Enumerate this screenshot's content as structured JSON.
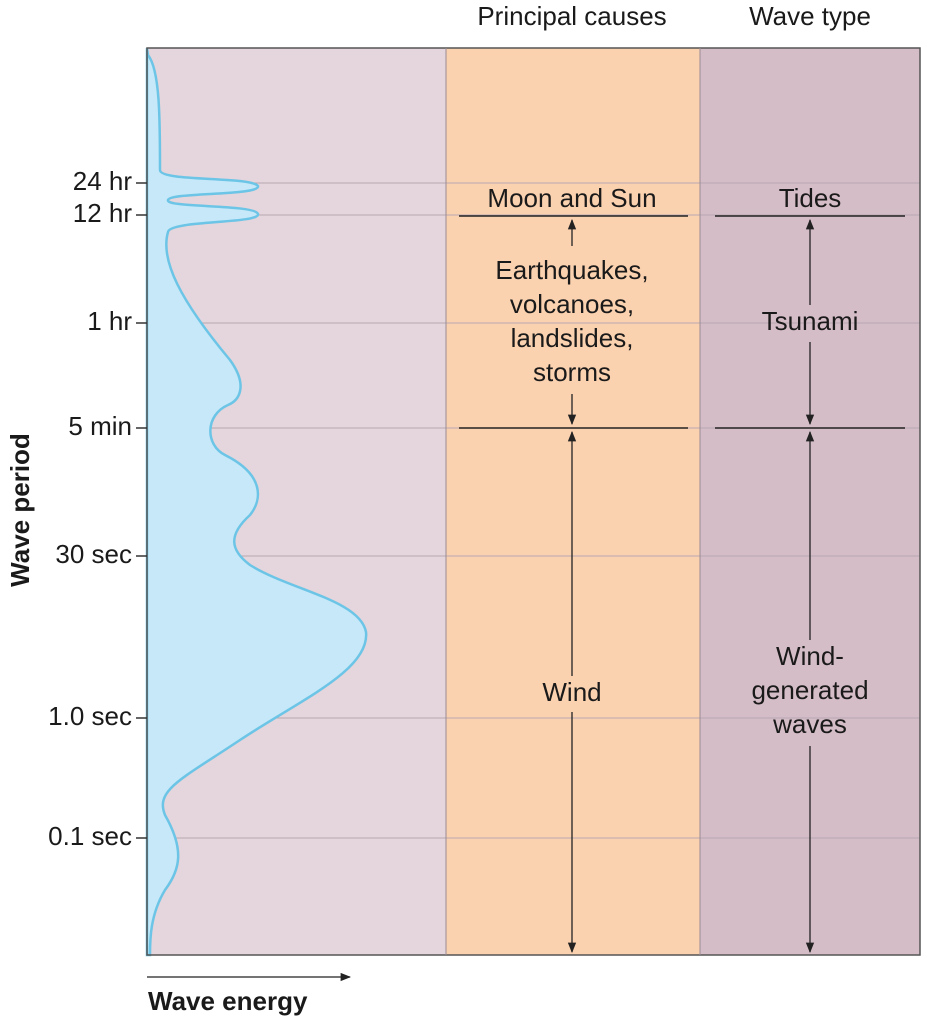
{
  "columns": [
    "Principal causes",
    "Wave type"
  ],
  "axis": {
    "y_title": "Wave period",
    "x_title": "Wave energy",
    "y_labels": [
      "24 hr",
      "12 hr",
      "1 hr",
      "5 min",
      "30 sec",
      "1.0 sec",
      "0.1 sec"
    ]
  },
  "causes": [
    {
      "lines": [
        "Moon and Sun"
      ]
    },
    {
      "lines": [
        "Earthquakes,",
        "volcanoes,",
        "landslides,",
        "storms"
      ]
    },
    {
      "lines": [
        "Wind"
      ]
    }
  ],
  "wave_types": [
    {
      "lines": [
        "Tides"
      ]
    },
    {
      "lines": [
        "Tsunami"
      ]
    },
    {
      "lines": [
        "Wind-",
        "generated",
        "waves"
      ]
    }
  ]
}
